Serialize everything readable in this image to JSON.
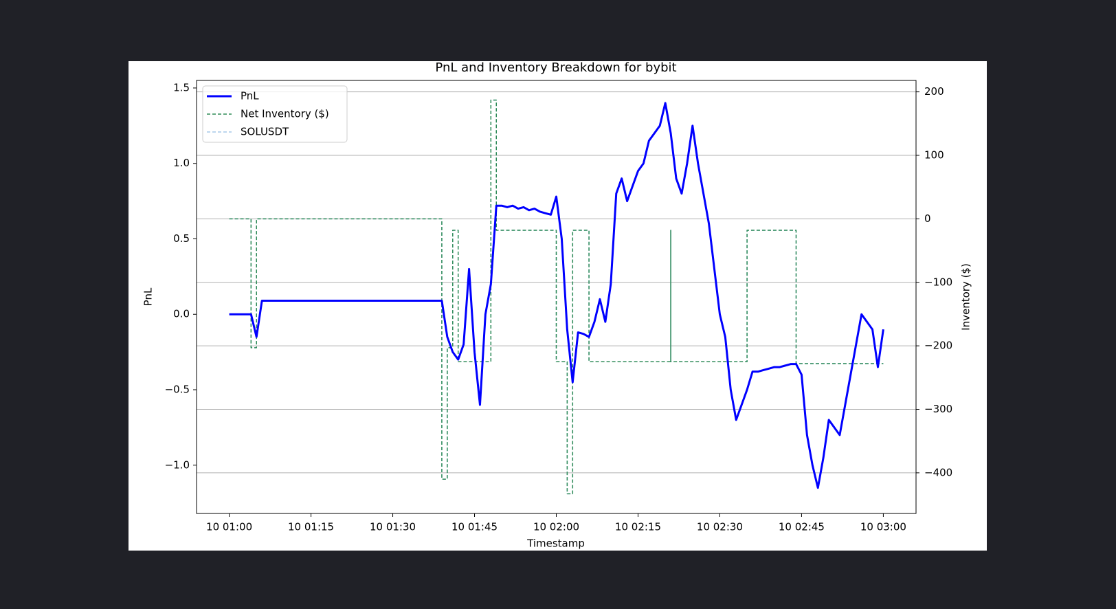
{
  "chart_data": {
    "type": "line",
    "title": "PnL and Inventory Breakdown for bybit",
    "xlabel": "Timestamp",
    "ylabel": "PnL",
    "y2label": "Inventory ($)",
    "xlim": [
      "10 00:54",
      "10 03:06"
    ],
    "xticks": [
      "10 01:00",
      "10 01:15",
      "10 01:30",
      "10 01:45",
      "10 02:00",
      "10 02:15",
      "10 02:30",
      "10 02:45",
      "10 03:00"
    ],
    "ylim": [
      -1.32,
      1.55
    ],
    "yticks": [
      {
        "value": -1.0,
        "label": "−1.0"
      },
      {
        "value": -0.5,
        "label": "−0.5"
      },
      {
        "value": 0,
        "label": "0.0"
      },
      {
        "value": 0.5,
        "label": "0.5"
      },
      {
        "value": 1.0,
        "label": "1.0"
      },
      {
        "value": 1.5,
        "label": "1.5"
      }
    ],
    "y2lim": [
      -464,
      218
    ],
    "y2ticks": [
      {
        "value": -400,
        "label": "−400"
      },
      {
        "value": -300,
        "label": "−300"
      },
      {
        "value": -200,
        "label": "−200"
      },
      {
        "value": -100,
        "label": "−100"
      },
      0,
      100,
      200
    ],
    "grid": "y2",
    "legend": "upper left",
    "ycolor": "#0000ff",
    "y2color": "#228b22",
    "series": [
      {
        "name": "PnL",
        "color": "#0000ff",
        "axis": "y",
        "dash": false,
        "x": [
          "10 01:00",
          "10 01:04",
          "10 01:05",
          "10 01:06",
          "10 01:39",
          "10 01:40",
          "10 01:41",
          "10 01:42",
          "10 01:43",
          "10 01:44",
          "10 01:45",
          "10 01:46",
          "10 01:47",
          "10 01:48",
          "10 01:49",
          "10 01:50",
          "10 01:51",
          "10 01:52",
          "10 01:53",
          "10 01:54",
          "10 01:55",
          "10 01:56",
          "10 01:57",
          "10 01:58",
          "10 01:59",
          "10 02:00",
          "10 02:01",
          "10 02:02",
          "10 02:03",
          "10 02:04",
          "10 02:05",
          "10 02:06",
          "10 02:07",
          "10 02:08",
          "10 02:09",
          "10 02:10",
          "10 02:11",
          "10 02:12",
          "10 02:13",
          "10 02:14",
          "10 02:15",
          "10 02:16",
          "10 02:17",
          "10 02:18",
          "10 02:19",
          "10 02:20",
          "10 02:21",
          "10 02:22",
          "10 02:23",
          "10 02:24",
          "10 02:25",
          "10 02:26",
          "10 02:27",
          "10 02:28",
          "10 02:29",
          "10 02:30",
          "10 02:31",
          "10 02:32",
          "10 02:33",
          "10 02:34",
          "10 02:35",
          "10 02:36",
          "10 02:37",
          "10 02:38",
          "10 02:39",
          "10 02:40",
          "10 02:41",
          "10 02:42",
          "10 02:43",
          "10 02:44",
          "10 02:45",
          "10 02:46",
          "10 02:47",
          "10 02:48",
          "10 02:49",
          "10 02:50",
          "10 02:51",
          "10 02:52",
          "10 02:53",
          "10 02:54",
          "10 02:55",
          "10 02:56",
          "10 02:57",
          "10 02:58",
          "10 02:59",
          "10 03:00"
        ],
        "values": [
          0,
          0,
          -0.15,
          0.09,
          0.09,
          -0.15,
          -0.25,
          -0.3,
          -0.2,
          0.3,
          -0.25,
          -0.6,
          0,
          0.2,
          0.72,
          0.72,
          0.71,
          0.72,
          0.7,
          0.71,
          0.69,
          0.7,
          0.68,
          0.67,
          0.66,
          0.78,
          0.5,
          -0.1,
          -0.45,
          -0.12,
          -0.13,
          -0.15,
          -0.05,
          0.1,
          -0.05,
          0.2,
          0.8,
          0.9,
          0.75,
          0.85,
          0.95,
          1.0,
          1.15,
          1.2,
          1.25,
          1.4,
          1.2,
          0.9,
          0.8,
          1.0,
          1.25,
          1.0,
          0.8,
          0.6,
          0.3,
          0,
          -0.15,
          -0.5,
          -0.7,
          -0.6,
          -0.5,
          -0.38,
          -0.38,
          -0.37,
          -0.36,
          -0.35,
          -0.35,
          -0.34,
          -0.33,
          -0.33,
          -0.4,
          -0.8,
          -1.0,
          -1.15,
          -0.95,
          -0.7,
          -0.75,
          -0.8,
          -0.6,
          -0.4,
          -0.2,
          0,
          -0.05,
          -0.1,
          -0.35,
          -0.1
        ]
      },
      {
        "name": "Net Inventory ($)",
        "color": "#2e8b57",
        "axis": "y2",
        "dash": true,
        "x": [
          "10 01:00",
          "10 01:04",
          "10 01:04",
          "10 01:05",
          "10 01:05",
          "10 01:39",
          "10 01:39",
          "10 01:40",
          "10 01:40",
          "10 01:41",
          "10 01:41",
          "10 01:42",
          "10 01:42",
          "10 01:48",
          "10 01:48",
          "10 01:49",
          "10 01:49",
          "10 02:00",
          "10 02:00",
          "10 02:02",
          "10 02:02",
          "10 02:03",
          "10 02:03",
          "10 02:06",
          "10 02:06",
          "10 02:21",
          "10 02:21",
          "10 02:21",
          "10 02:35",
          "10 02:35",
          "10 02:44",
          "10 02:44",
          "10 03:00"
        ],
        "values": [
          0,
          0,
          -203,
          -203,
          0,
          0,
          -410,
          -410,
          -203,
          -203,
          -18,
          -18,
          -225,
          -225,
          187,
          187,
          -18,
          -18,
          -225,
          -225,
          -433,
          -433,
          -18,
          -18,
          -225,
          -225,
          -18,
          -225,
          -225,
          -18,
          -18,
          -228,
          -228
        ]
      },
      {
        "name": "SOLUSDT",
        "color": "#a6c8e8",
        "axis": "y2",
        "dash": true,
        "x": [
          "10 01:00",
          "10 01:04",
          "10 01:04",
          "10 01:05",
          "10 01:05",
          "10 01:39",
          "10 01:39",
          "10 01:40",
          "10 01:40",
          "10 01:41",
          "10 01:41",
          "10 01:42",
          "10 01:42",
          "10 01:48",
          "10 01:48",
          "10 01:49",
          "10 01:49",
          "10 02:00",
          "10 02:00",
          "10 02:02",
          "10 02:02",
          "10 02:03",
          "10 02:03",
          "10 02:06",
          "10 02:06",
          "10 02:21",
          "10 02:21",
          "10 02:21",
          "10 02:35",
          "10 02:35",
          "10 02:44",
          "10 02:44",
          "10 03:00"
        ],
        "values": [
          0,
          0,
          -203,
          -203,
          0,
          0,
          -410,
          -410,
          -203,
          -203,
          -18,
          -18,
          -225,
          -225,
          187,
          187,
          -18,
          -18,
          -225,
          -225,
          -433,
          -433,
          -18,
          -18,
          -225,
          -225,
          -18,
          -225,
          -225,
          -18,
          -18,
          -228,
          -228
        ]
      }
    ]
  }
}
